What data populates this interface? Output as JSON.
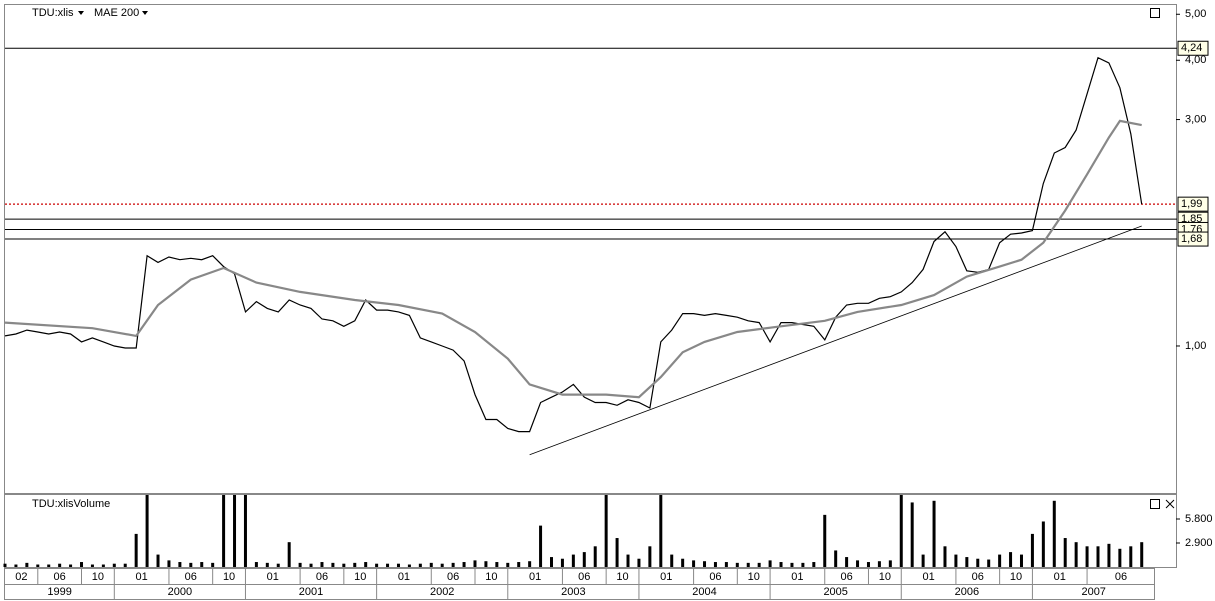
{
  "chart_data": [
    {
      "type": "line",
      "log_scale": true,
      "x": [
        "1999-03",
        "1999-04",
        "1999-05",
        "1999-06",
        "1999-07",
        "1999-08",
        "1999-09",
        "1999-10",
        "1999-11",
        "1999-12",
        "2000-01",
        "2000-02",
        "2000-03",
        "2000-04",
        "2000-05",
        "2000-06",
        "2000-07",
        "2000-08",
        "2000-09",
        "2000-10",
        "2000-11",
        "2000-12",
        "2001-01",
        "2001-02",
        "2001-03",
        "2001-04",
        "2001-05",
        "2001-06",
        "2001-07",
        "2001-08",
        "2001-09",
        "2001-10",
        "2001-11",
        "2001-12",
        "2002-01",
        "2002-02",
        "2002-03",
        "2002-04",
        "2002-05",
        "2002-06",
        "2002-07",
        "2002-08",
        "2002-09",
        "2002-10",
        "2002-11",
        "2002-12",
        "2003-01",
        "2003-02",
        "2003-03",
        "2003-04",
        "2003-05",
        "2003-06",
        "2003-07",
        "2003-08",
        "2003-09",
        "2003-10",
        "2003-11",
        "2003-12",
        "2004-01",
        "2004-02",
        "2004-03",
        "2004-04",
        "2004-05",
        "2004-06",
        "2004-07",
        "2004-08",
        "2004-09",
        "2004-10",
        "2004-11",
        "2004-12",
        "2005-01",
        "2005-02",
        "2005-03",
        "2005-04",
        "2005-05",
        "2005-06",
        "2005-07",
        "2005-08",
        "2005-09",
        "2005-10",
        "2005-11",
        "2005-12",
        "2006-01",
        "2006-02",
        "2006-03",
        "2006-04",
        "2006-05",
        "2006-06",
        "2006-07",
        "2006-08",
        "2006-09",
        "2006-10",
        "2006-11",
        "2006-12",
        "2007-01",
        "2007-02",
        "2007-03",
        "2007-04",
        "2007-05",
        "2007-06",
        "2007-07",
        "2007-08",
        "2007-09",
        "2007-10",
        "2007-11"
      ],
      "series": [
        {
          "name": "TDU:xlis",
          "color": "#000000",
          "values": [
            1.05,
            1.06,
            1.08,
            1.07,
            1.06,
            1.07,
            1.06,
            1.02,
            1.04,
            1.02,
            1.0,
            0.99,
            0.99,
            1.55,
            1.5,
            1.54,
            1.52,
            1.53,
            1.52,
            1.55,
            1.47,
            1.42,
            1.18,
            1.24,
            1.2,
            1.18,
            1.25,
            1.22,
            1.2,
            1.14,
            1.13,
            1.1,
            1.13,
            1.25,
            1.19,
            1.19,
            1.18,
            1.16,
            1.04,
            1.02,
            1.0,
            0.98,
            0.93,
            0.79,
            0.7,
            0.7,
            0.67,
            0.66,
            0.66,
            0.76,
            0.78,
            0.8,
            0.83,
            0.78,
            0.76,
            0.76,
            0.75,
            0.77,
            0.76,
            0.74,
            1.02,
            1.08,
            1.17,
            1.17,
            1.16,
            1.17,
            1.16,
            1.15,
            1.13,
            1.12,
            1.02,
            1.12,
            1.12,
            1.11,
            1.1,
            1.03,
            1.15,
            1.22,
            1.23,
            1.23,
            1.26,
            1.27,
            1.3,
            1.36,
            1.45,
            1.66,
            1.74,
            1.62,
            1.44,
            1.43,
            1.45,
            1.65,
            1.72,
            1.73,
            1.75,
            2.2,
            2.55,
            2.62,
            2.85,
            3.4,
            4.05,
            3.95,
            3.5,
            2.8,
            1.99
          ]
        },
        {
          "name": "MAE 200",
          "color": "#888888",
          "x": [
            "1999-03",
            "1999-11",
            "2000-03",
            "2000-05",
            "2000-08",
            "2000-11",
            "2001-02",
            "2001-06",
            "2001-11",
            "2002-03",
            "2002-07",
            "2002-10",
            "2003-01",
            "2003-03",
            "2003-06",
            "2003-10",
            "2004-01",
            "2004-03",
            "2004-05",
            "2004-07",
            "2004-10",
            "2005-02",
            "2005-06",
            "2005-09",
            "2006-01",
            "2006-04",
            "2006-07",
            "2006-10",
            "2006-12",
            "2007-02",
            "2007-04",
            "2007-06",
            "2007-08",
            "2007-09",
            "2007-11"
          ],
          "values": [
            1.12,
            1.09,
            1.05,
            1.22,
            1.38,
            1.46,
            1.36,
            1.3,
            1.25,
            1.22,
            1.17,
            1.07,
            0.94,
            0.83,
            0.79,
            0.79,
            0.78,
            0.86,
            0.97,
            1.02,
            1.07,
            1.1,
            1.13,
            1.18,
            1.22,
            1.28,
            1.4,
            1.47,
            1.52,
            1.65,
            1.93,
            2.3,
            2.75,
            2.98,
            2.92
          ]
        }
      ],
      "ylim": [
        0.49,
        5.23
      ],
      "yticks": [
        {
          "value": 1,
          "label": "1,00"
        },
        {
          "value": 3,
          "label": "3,00"
        },
        {
          "value": 4,
          "label": "4,00"
        },
        {
          "value": 5,
          "label": "5,00"
        }
      ],
      "levels": [
        {
          "value": 4.24,
          "label": "4,24",
          "color": "#000000"
        },
        {
          "value": 1.99,
          "label": "1,99",
          "color": "#cc0000",
          "dotted": true
        },
        {
          "value": 1.85,
          "label": "1,85",
          "color": "#000000"
        },
        {
          "value": 1.76,
          "label": "1,76",
          "color": "#000000"
        },
        {
          "value": 1.68,
          "label": "1,68",
          "color": "#000000"
        }
      ],
      "trendline": {
        "x": [
          "2003-03",
          "2007-11"
        ],
        "values": [
          0.59,
          1.79
        ]
      },
      "xticks": [
        {
          "value": "1999-02",
          "label": "02"
        },
        {
          "value": "1999-06",
          "label": "06"
        },
        {
          "value": "1999-10",
          "label": "10"
        },
        {
          "value": "2000-01",
          "label": "01"
        },
        {
          "value": "2000-06",
          "label": "06"
        },
        {
          "value": "2000-10",
          "label": "10"
        },
        {
          "value": "2001-01",
          "label": "01"
        },
        {
          "value": "2001-06",
          "label": "06"
        },
        {
          "value": "2001-10",
          "label": "10"
        },
        {
          "value": "2002-01",
          "label": "01"
        },
        {
          "value": "2002-06",
          "label": "06"
        },
        {
          "value": "2002-10",
          "label": "10"
        },
        {
          "value": "2003-01",
          "label": "01"
        },
        {
          "value": "2003-06",
          "label": "06"
        },
        {
          "value": "2003-10",
          "label": "10"
        },
        {
          "value": "2004-01",
          "label": "01"
        },
        {
          "value": "2004-06",
          "label": "06"
        },
        {
          "value": "2004-10",
          "label": "10"
        },
        {
          "value": "2005-01",
          "label": "01"
        },
        {
          "value": "2005-06",
          "label": "06"
        },
        {
          "value": "2005-10",
          "label": "10"
        },
        {
          "value": "2006-01",
          "label": "01"
        },
        {
          "value": "2006-06",
          "label": "06"
        },
        {
          "value": "2006-10",
          "label": "10"
        },
        {
          "value": "2007-01",
          "label": "01"
        },
        {
          "value": "2007-06",
          "label": "06"
        }
      ],
      "years": [
        "1999",
        "2000",
        "2001",
        "2002",
        "2003",
        "2004",
        "2005",
        "2006",
        "2007"
      ]
    },
    {
      "type": "bar",
      "title": "TDU:xlisVolume",
      "color": "#000000",
      "values": [
        400,
        300,
        500,
        300,
        300,
        400,
        300,
        600,
        300,
        300,
        400,
        400,
        4000,
        8700,
        1500,
        800,
        600,
        500,
        600,
        500,
        8700,
        8700,
        8700,
        600,
        500,
        400,
        3000,
        500,
        400,
        600,
        500,
        400,
        500,
        600,
        400,
        400,
        400,
        300,
        400,
        500,
        400,
        500,
        600,
        800,
        700,
        600,
        500,
        600,
        700,
        5000,
        1200,
        1000,
        1500,
        1800,
        2500,
        8700,
        3500,
        1500,
        1000,
        2500,
        8700,
        1500,
        1000,
        800,
        700,
        600,
        600,
        500,
        500,
        500,
        800,
        600,
        500,
        500,
        600,
        6300,
        2000,
        1200,
        800,
        600,
        700,
        800,
        8700,
        7800,
        1500,
        8000,
        2500,
        1500,
        1200,
        1000,
        900,
        1500,
        1800,
        1500,
        4000,
        5500,
        8000,
        3500,
        3000,
        2500,
        2500,
        2800,
        2200,
        2500,
        3000
      ],
      "ylim": [
        0,
        8700
      ],
      "yticks": [
        {
          "value": 2900,
          "label": "2.900"
        },
        {
          "value": 5800,
          "label": "5.800"
        }
      ]
    }
  ]
}
